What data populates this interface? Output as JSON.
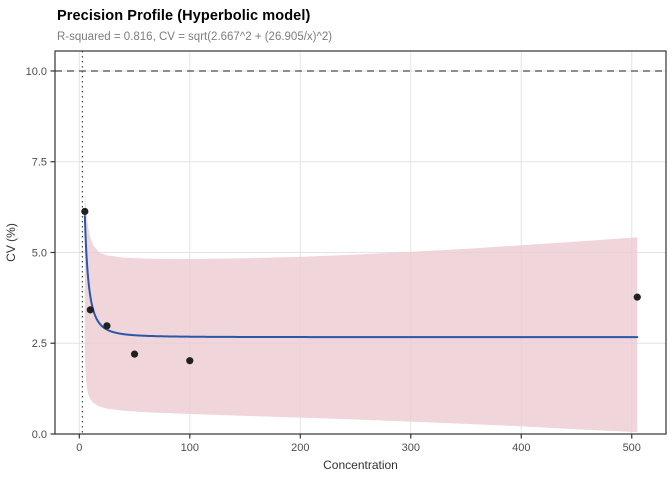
{
  "header": {
    "title": "Precision Profile (Hyperbolic model)",
    "subtitle": "R-squared = 0.816, CV = sqrt(2.667^2 + (26.905/x)^2)"
  },
  "chart_data": {
    "type": "scatter",
    "title": "Precision Profile (Hyperbolic model)",
    "subtitle": "R-squared = 0.816, CV = sqrt(2.667^2 + (26.905/x)^2)",
    "xlabel": "Concentration",
    "ylabel": "CV (%)",
    "r_squared": 0.816,
    "xlim": [
      -22,
      531
    ],
    "ylim": [
      0,
      10.55
    ],
    "x_ticks": {
      "values": [
        0,
        100,
        200,
        300,
        400,
        500
      ],
      "labels": [
        "0",
        "100",
        "200",
        "300",
        "400",
        "500"
      ]
    },
    "y_ticks": {
      "values": [
        0,
        2.5,
        5,
        7.5,
        10
      ],
      "labels": [
        "0.0",
        "2.5",
        "5.0",
        "7.5",
        "10.0"
      ]
    },
    "grid": true,
    "legend": "none",
    "points": [
      {
        "x": 5,
        "y": 6.13
      },
      {
        "x": 10,
        "y": 3.42
      },
      {
        "x": 25,
        "y": 2.98
      },
      {
        "x": 50,
        "y": 2.2
      },
      {
        "x": 100,
        "y": 2.02
      },
      {
        "x": 505,
        "y": 3.77
      }
    ],
    "fit_curve": {
      "formula": "CV = sqrt(2.667^2 + (26.905/x)^2)",
      "sigma": 2.667,
      "k": 26.905,
      "x_range": [
        5,
        505
      ]
    },
    "confidence_ribbon": [
      {
        "x": 5,
        "lo": 2.2,
        "hi": 6.7
      },
      {
        "x": 6,
        "lo": 1.5,
        "hi": 6.25
      },
      {
        "x": 7,
        "lo": 1.25,
        "hi": 5.95
      },
      {
        "x": 8,
        "lo": 1.1,
        "hi": 5.7
      },
      {
        "x": 10,
        "lo": 0.95,
        "hi": 5.4
      },
      {
        "x": 13,
        "lo": 0.85,
        "hi": 5.18
      },
      {
        "x": 18,
        "lo": 0.76,
        "hi": 5.0
      },
      {
        "x": 25,
        "lo": 0.7,
        "hi": 4.92
      },
      {
        "x": 40,
        "lo": 0.64,
        "hi": 4.86
      },
      {
        "x": 60,
        "lo": 0.6,
        "hi": 4.83
      },
      {
        "x": 100,
        "lo": 0.55,
        "hi": 4.82
      },
      {
        "x": 150,
        "lo": 0.5,
        "hi": 4.84
      },
      {
        "x": 200,
        "lo": 0.45,
        "hi": 4.88
      },
      {
        "x": 250,
        "lo": 0.4,
        "hi": 4.94
      },
      {
        "x": 300,
        "lo": 0.34,
        "hi": 5.02
      },
      {
        "x": 350,
        "lo": 0.28,
        "hi": 5.1
      },
      {
        "x": 400,
        "lo": 0.21,
        "hi": 5.2
      },
      {
        "x": 450,
        "lo": 0.13,
        "hi": 5.3
      },
      {
        "x": 505,
        "lo": 0.05,
        "hi": 5.42
      }
    ],
    "reference_lines": {
      "horizontal_dashed_y": 10,
      "vertical_dotted_x": 2.8
    },
    "colors": {
      "fit_line": "#2a57a7",
      "ribbon_fill": "#ecccd2",
      "points": "#212121",
      "grid_line": "#e4e4e4",
      "panel_border": "#333333",
      "axis_text": "#4d4d4d",
      "axis_title": "#333333",
      "reference_line": "#4a4a4a",
      "subtitle_text": "#7d7d7d",
      "title_text": "#000000"
    }
  }
}
